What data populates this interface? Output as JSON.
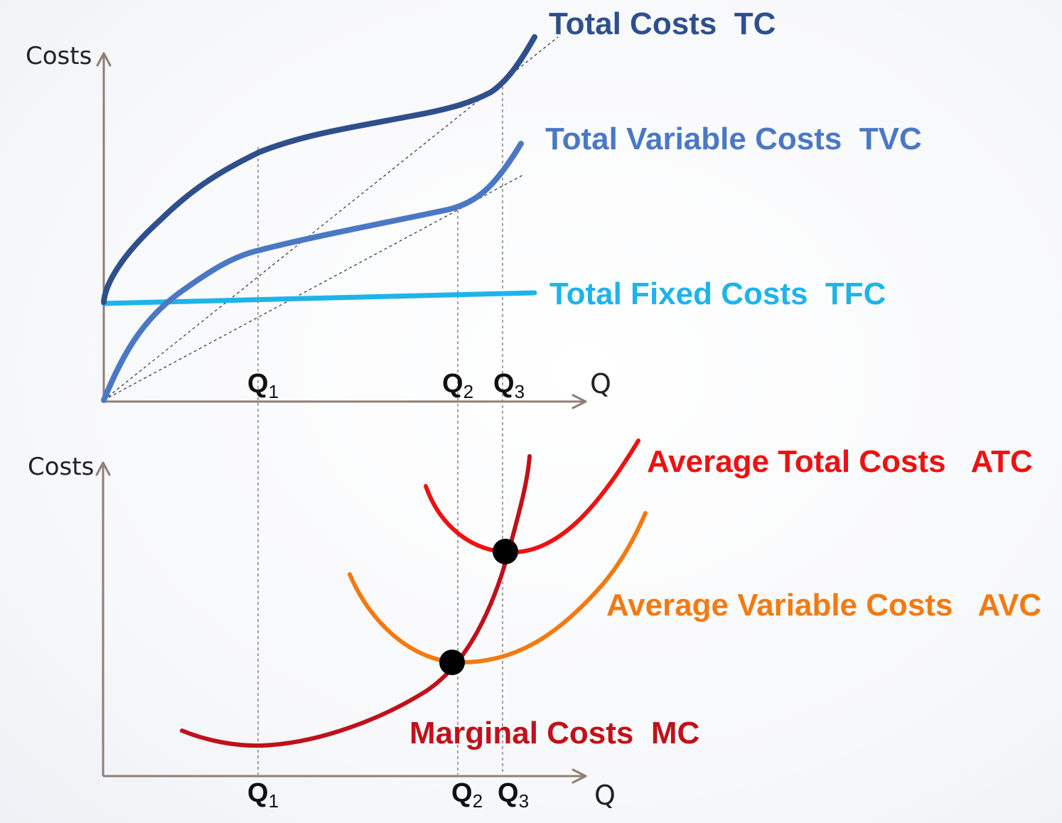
{
  "top_panel": {
    "y_axis_label": "Costs",
    "x_axis_label": "Q",
    "q_markers": [
      {
        "base": "Q",
        "sub": "1"
      },
      {
        "base": "Q",
        "sub": "2"
      },
      {
        "base": "Q",
        "sub": "3"
      }
    ],
    "curves": {
      "tc": {
        "label": "Total Costs  TC",
        "color": "#2f4f8c"
      },
      "tvc": {
        "label": "Total Variable Costs  TVC",
        "color": "#4a78c4"
      },
      "tfc": {
        "label": "Total Fixed Costs  TFC",
        "color": "#1eb4ea"
      }
    }
  },
  "bottom_panel": {
    "y_axis_label": "Costs",
    "x_axis_label": "Q",
    "q_markers": [
      {
        "base": "Q",
        "sub": "1"
      },
      {
        "base": "Q",
        "sub": "2"
      },
      {
        "base": "Q",
        "sub": "3"
      }
    ],
    "curves": {
      "atc": {
        "label": "Average Total Costs   ATC",
        "color": "#ee1111"
      },
      "avc": {
        "label": "Average Variable Costs   AVC",
        "color": "#f27a12"
      },
      "mc": {
        "label": "Marginal Costs  MC",
        "color": "#c0111a"
      }
    }
  }
}
